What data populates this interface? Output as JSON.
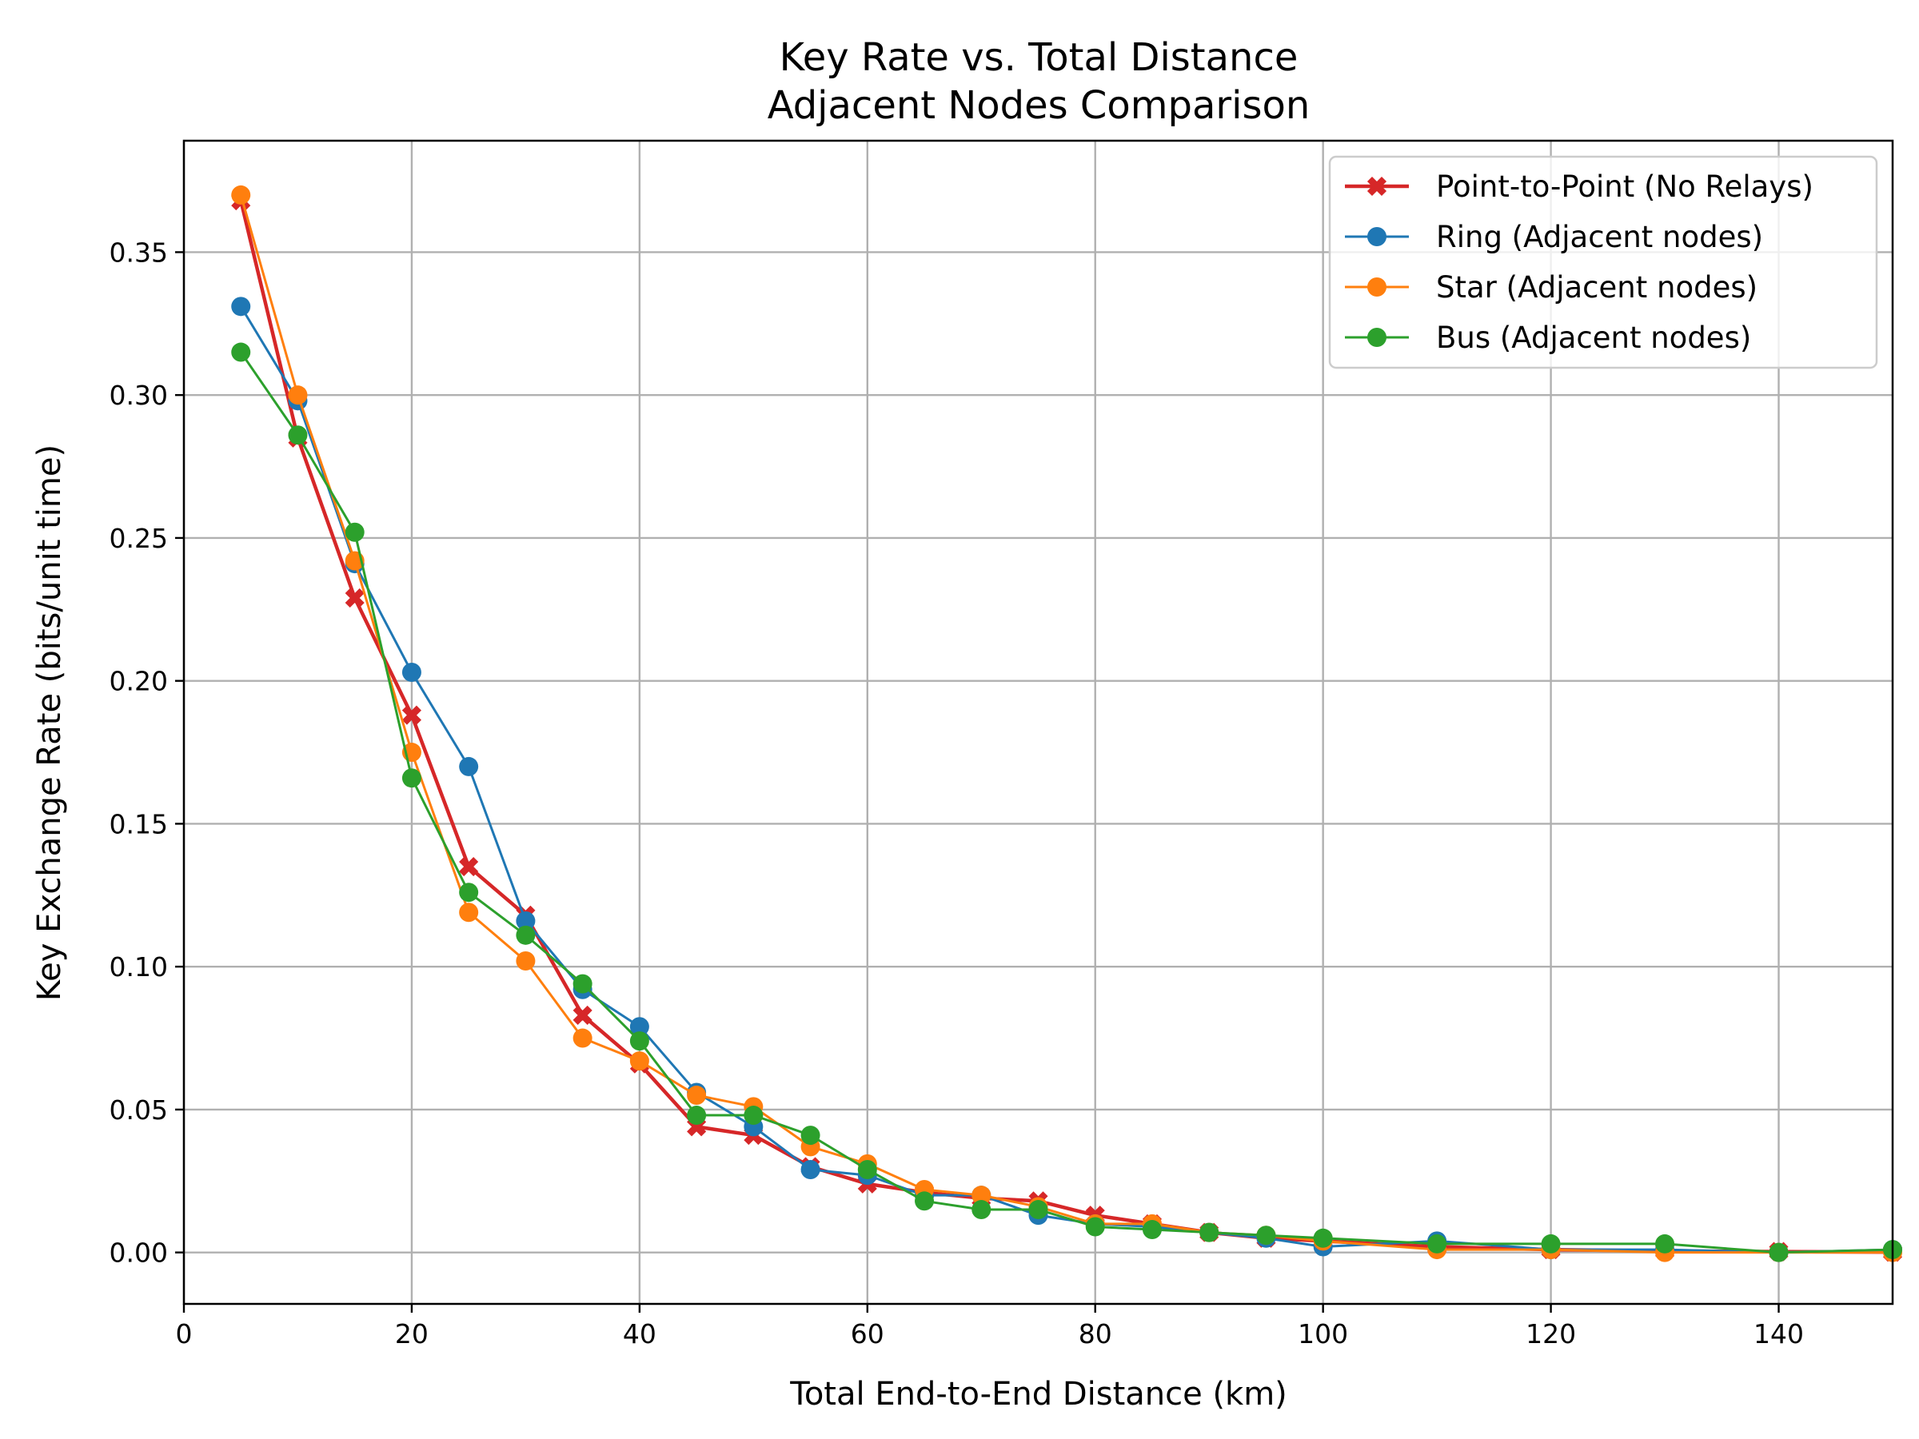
{
  "chart_data": {
    "type": "line",
    "title": "Key Rate vs. Total Distance",
    "subtitle": "Adjacent Nodes Comparison",
    "xlabel": "Total End-to-End Distance (km)",
    "ylabel": "Key Exchange Rate (bits/unit time)",
    "xlim": [
      0,
      150
    ],
    "ylim": [
      -0.018,
      0.389
    ],
    "xticks": [
      0,
      20,
      40,
      60,
      80,
      100,
      120,
      140
    ],
    "yticks": [
      0.0,
      0.05,
      0.1,
      0.15,
      0.2,
      0.25,
      0.3,
      0.35
    ],
    "x_tick_labels": [
      "0",
      "20",
      "40",
      "60",
      "80",
      "100",
      "120",
      "140"
    ],
    "y_tick_labels": [
      "0.00",
      "0.05",
      "0.10",
      "0.15",
      "0.20",
      "0.25",
      "0.30",
      "0.35"
    ],
    "grid": true,
    "legend_position": "top-right",
    "x": [
      5,
      10,
      15,
      20,
      25,
      30,
      35,
      40,
      45,
      50,
      55,
      60,
      65,
      70,
      75,
      80,
      85,
      90,
      95,
      100,
      110,
      120,
      130,
      140,
      150
    ],
    "series": [
      {
        "name": "Point-to-Point (No Relays)",
        "color": "#d62728",
        "marker": "x-filled",
        "values": [
          0.368,
          0.285,
          0.229,
          0.188,
          0.135,
          0.118,
          0.083,
          0.066,
          0.044,
          0.041,
          0.03,
          0.024,
          0.021,
          0.019,
          0.018,
          0.013,
          0.01,
          0.007,
          0.005,
          0.004,
          0.002,
          0.001,
          0.0005,
          0.0003,
          0.0001
        ]
      },
      {
        "name": "Ring (Adjacent nodes)",
        "color": "#1f77b4",
        "marker": "circle",
        "values": [
          0.331,
          0.298,
          0.241,
          0.203,
          0.17,
          0.116,
          0.092,
          0.079,
          0.056,
          0.044,
          0.029,
          0.027,
          0.02,
          0.02,
          0.013,
          0.01,
          0.009,
          0.007,
          0.005,
          0.002,
          0.004,
          0.001,
          0.001,
          0.0,
          0.001
        ]
      },
      {
        "name": "Star (Adjacent nodes)",
        "color": "#ff7f0e",
        "marker": "circle",
        "values": [
          0.37,
          0.3,
          0.242,
          0.175,
          0.119,
          0.102,
          0.075,
          0.067,
          0.055,
          0.051,
          0.037,
          0.031,
          0.022,
          0.02,
          0.016,
          0.01,
          0.01,
          0.007,
          0.006,
          0.004,
          0.001,
          0.001,
          0.0,
          0.0,
          0.0
        ]
      },
      {
        "name": "Bus (Adjacent nodes)",
        "color": "#2ca02c",
        "marker": "circle",
        "values": [
          0.315,
          0.286,
          0.252,
          0.166,
          0.126,
          0.111,
          0.094,
          0.074,
          0.048,
          0.048,
          0.041,
          0.029,
          0.018,
          0.015,
          0.015,
          0.009,
          0.008,
          0.007,
          0.006,
          0.005,
          0.003,
          0.003,
          0.003,
          0.0,
          0.001
        ]
      }
    ]
  }
}
